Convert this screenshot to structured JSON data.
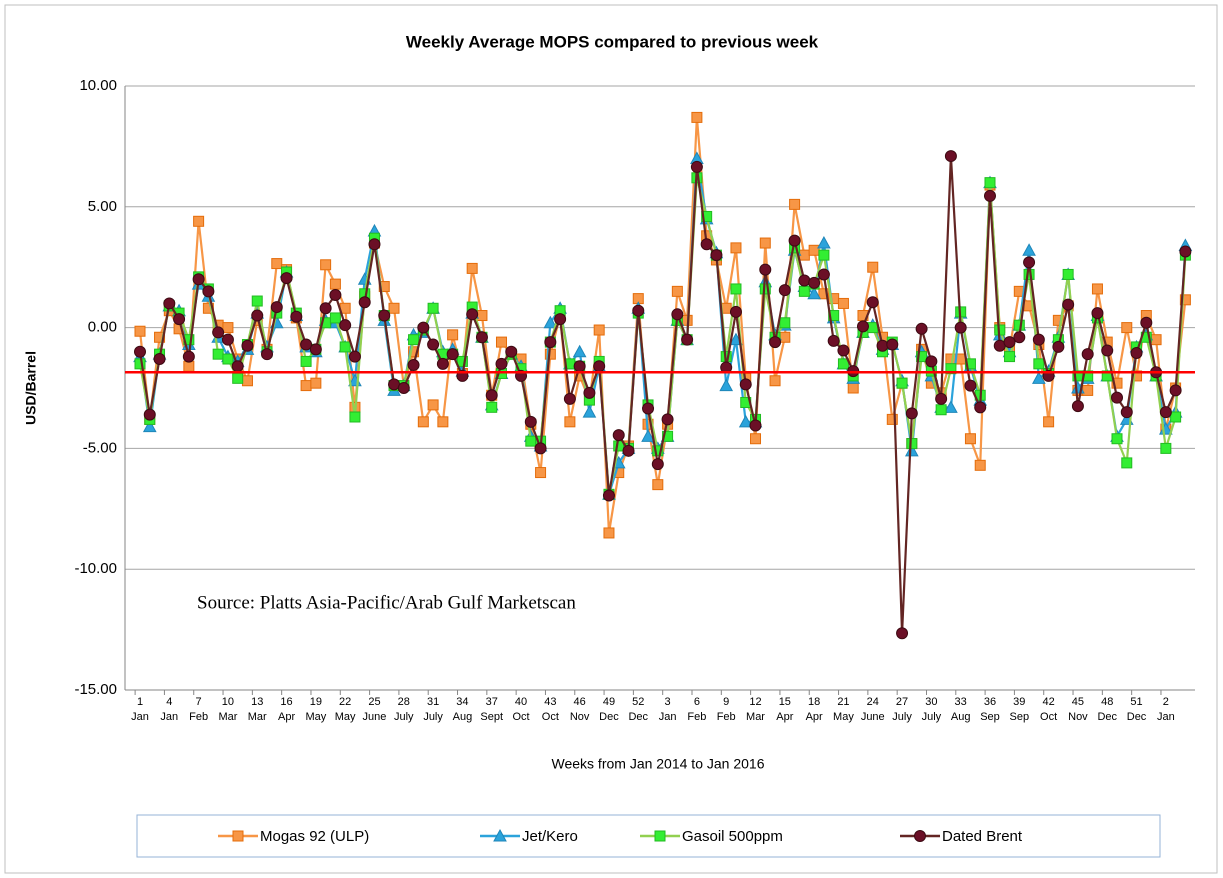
{
  "chart_data": {
    "type": "line",
    "title": "Weekly Average MOPS compared to previous week",
    "x_label": "Weeks from Jan  2014 to Jan 2016",
    "y_label": "USD/Barrel",
    "annotation": "Source: Platts Asia-Pacific/Arab Gulf Marketscan",
    "categories": [
      "1 Jan",
      null,
      null,
      "4 Jan",
      null,
      null,
      "7 Feb",
      null,
      null,
      "10 Mar",
      null,
      null,
      "13 Mar",
      null,
      null,
      "16 Apr",
      null,
      null,
      "19 May",
      null,
      null,
      "22 May",
      null,
      null,
      "25 June",
      null,
      null,
      "28 July",
      null,
      null,
      "31 July",
      null,
      null,
      "34 Aug",
      null,
      null,
      "37 Sept",
      null,
      null,
      "40 Oct",
      null,
      null,
      "43 Oct",
      null,
      null,
      "46 Nov",
      null,
      null,
      "49 Dec",
      null,
      null,
      "52 Dec",
      null,
      null,
      "3 Jan",
      null,
      null,
      "6 Feb",
      null,
      null,
      "9 Feb",
      null,
      null,
      "12 Mar",
      null,
      null,
      "15 Apr",
      null,
      null,
      "18 Apr",
      null,
      null,
      "21 May",
      null,
      null,
      "24 June",
      null,
      null,
      "27 July",
      null,
      null,
      "30 July",
      null,
      null,
      "33 Aug",
      null,
      null,
      "36 Sep",
      null,
      null,
      "39 Sep",
      null,
      null,
      "42 Oct",
      null,
      null,
      "45 Nov",
      null,
      null,
      "48 Dec",
      null,
      null,
      "51 Dec",
      null,
      null,
      "2 Jan",
      null,
      null
    ],
    "series": [
      {
        "name": "Mogas 92 (ULP)",
        "color": "#f79646",
        "marker": "square",
        "values": [
          -0.15,
          -3.8,
          -0.4,
          0.7,
          -0.05,
          -1.6,
          4.4,
          0.8,
          0.1,
          0.0,
          -1.3,
          -2.2,
          0.3,
          -0.9,
          2.65,
          2.4,
          0.4,
          -2.4,
          -2.3,
          2.6,
          1.8,
          0.8,
          -3.3,
          1.3,
          3.5,
          1.7,
          0.8,
          -2.4,
          -1.0,
          -3.9,
          -3.2,
          -3.9,
          -0.3,
          -1.9,
          2.45,
          0.5,
          -2.8,
          -0.6,
          -1.1,
          -1.3,
          -4.0,
          -6.0,
          -1.1,
          0.5,
          -3.9,
          -2.0,
          -3.0,
          -0.1,
          -8.5,
          -6.0,
          -4.9,
          1.2,
          -4.0,
          -6.5,
          -4.0,
          1.5,
          0.3,
          8.7,
          3.8,
          2.8,
          0.8,
          3.3,
          -2.1,
          -4.6,
          3.5,
          -2.2,
          -0.4,
          5.1,
          3.0,
          3.2,
          1.4,
          1.2,
          1.0,
          -2.5,
          0.5,
          2.5,
          -0.4,
          -3.8,
          -2.3,
          -4.8,
          -0.9,
          -2.3,
          -2.7,
          -1.3,
          -1.3,
          -4.6,
          -5.7,
          5.9,
          0.0,
          -0.9,
          1.5,
          0.9,
          -0.7,
          -3.9,
          0.3,
          0.9,
          -2.6,
          -2.6,
          1.6,
          -0.6,
          -2.3,
          0.0,
          -2.0,
          0.5,
          -0.5,
          -4.2,
          -2.5,
          1.15
        ]
      },
      {
        "name": "Jet/Kero",
        "color": "#2ba3db",
        "marker": "triangle",
        "values": [
          -1.2,
          -4.1,
          -1.1,
          0.9,
          0.7,
          -0.7,
          1.8,
          1.3,
          -0.4,
          -1.2,
          -1.4,
          -0.9,
          0.6,
          -0.8,
          0.2,
          2.3,
          0.5,
          -0.8,
          -1.0,
          0.3,
          0.2,
          -0.8,
          -2.2,
          2.0,
          4.0,
          0.3,
          -2.6,
          -2.4,
          -0.3,
          -0.2,
          0.8,
          -1.0,
          -0.9,
          -1.8,
          0.6,
          -0.4,
          -3.2,
          -1.9,
          -1.1,
          -1.6,
          -4.5,
          -4.9,
          0.2,
          0.8,
          -1.5,
          -1.0,
          -3.5,
          -1.6,
          -6.9,
          -5.6,
          -5.0,
          0.8,
          -4.5,
          -5.0,
          -4.5,
          0.3,
          -0.5,
          7.0,
          4.5,
          3.1,
          -2.4,
          -0.5,
          -3.9,
          -3.9,
          1.9,
          -0.3,
          0.1,
          3.2,
          1.7,
          1.4,
          3.5,
          0.4,
          -1.5,
          -2.1,
          -0.2,
          0.1,
          -0.9,
          -0.7,
          -2.2,
          -5.1,
          -1.0,
          -2.0,
          -3.3,
          -3.3,
          0.6,
          -1.6,
          -3.0,
          6.0,
          -0.3,
          -1.0,
          0.1,
          3.2,
          -2.1,
          -1.8,
          -0.4,
          2.2,
          -2.5,
          -2.1,
          0.5,
          -2.0,
          -4.5,
          -3.8,
          -0.8,
          -0.3,
          -2.0,
          -4.2,
          -3.5,
          3.4
        ]
      },
      {
        "name": "Gasoil 500ppm",
        "color": "#92d050",
        "marker": "square",
        "values": [
          -1.5,
          -3.8,
          -1.1,
          0.9,
          0.6,
          -0.5,
          2.1,
          1.6,
          -1.1,
          -1.3,
          -2.1,
          -0.7,
          1.1,
          -1.0,
          0.6,
          2.3,
          0.6,
          -1.4,
          -0.9,
          0.2,
          0.4,
          -0.8,
          -3.7,
          1.4,
          3.7,
          0.5,
          -2.4,
          -2.4,
          -0.5,
          -0.1,
          0.8,
          -1.1,
          -1.1,
          -1.4,
          0.85,
          -0.4,
          -3.3,
          -1.9,
          -1.1,
          -1.7,
          -4.7,
          -4.7,
          -0.6,
          0.7,
          -1.5,
          -1.6,
          -3.0,
          -1.4,
          -6.9,
          -4.9,
          -5.0,
          0.6,
          -3.2,
          -5.1,
          -4.5,
          0.3,
          -0.5,
          6.2,
          4.6,
          3.0,
          -1.2,
          1.6,
          -3.1,
          -3.8,
          1.6,
          -0.4,
          0.2,
          3.3,
          1.5,
          1.8,
          3.0,
          0.5,
          -1.5,
          -2.0,
          -0.2,
          0.0,
          -1.0,
          -0.6,
          -2.3,
          -4.8,
          -1.2,
          -1.8,
          -3.4,
          -1.7,
          0.65,
          -1.5,
          -2.8,
          6.0,
          -0.1,
          -1.2,
          0.1,
          2.2,
          -1.5,
          -1.9,
          -0.5,
          2.2,
          -2.0,
          -2.0,
          0.4,
          -2.0,
          -4.6,
          -5.6,
          -0.8,
          -0.4,
          -2.0,
          -5.0,
          -3.7,
          3.0
        ]
      },
      {
        "name": "Dated Brent",
        "color": "#632523",
        "marker": "circle",
        "values": [
          -1.0,
          -3.6,
          -1.3,
          1.0,
          0.35,
          -1.2,
          2.0,
          1.5,
          -0.2,
          -0.5,
          -1.6,
          -0.75,
          0.5,
          -1.1,
          0.85,
          2.05,
          0.45,
          -0.7,
          -0.9,
          0.8,
          1.35,
          0.1,
          -1.2,
          1.05,
          3.45,
          0.5,
          -2.35,
          -2.5,
          -1.55,
          0.0,
          -0.7,
          -1.5,
          -1.1,
          -2.0,
          0.55,
          -0.4,
          -2.8,
          -1.5,
          -1.0,
          -2.0,
          -3.9,
          -5.0,
          -0.6,
          0.35,
          -2.95,
          -1.6,
          -2.7,
          -1.6,
          -6.95,
          -4.45,
          -5.1,
          0.7,
          -3.35,
          -5.65,
          -3.8,
          0.55,
          -0.5,
          6.65,
          3.45,
          3.0,
          -1.65,
          0.65,
          -2.35,
          -4.05,
          2.4,
          -0.6,
          1.55,
          3.6,
          1.95,
          1.85,
          2.2,
          -0.55,
          -0.95,
          -1.8,
          0.05,
          1.05,
          -0.75,
          -0.7,
          -12.65,
          -3.55,
          -0.05,
          -1.4,
          -2.95,
          7.1,
          0.0,
          -2.4,
          -3.3,
          5.45,
          -0.75,
          -0.6,
          -0.4,
          2.7,
          -0.5,
          -2.0,
          -0.8,
          0.95,
          -3.25,
          -1.1,
          0.6,
          -0.95,
          -2.9,
          -3.5,
          -1.05,
          0.2,
          -1.85,
          -3.5,
          -2.6,
          3.15
        ]
      }
    ],
    "reference_line": {
      "value": -1.85,
      "color": "#ff0000"
    },
    "ylim": [
      -15,
      10
    ],
    "yticks": [
      {
        "value": -15,
        "label": "-15.00"
      },
      {
        "value": -10,
        "label": "-10.00"
      },
      {
        "value": -5,
        "label": "-5.00"
      },
      {
        "value": 0,
        "label": "0.00"
      },
      {
        "value": 5,
        "label": "5.00"
      },
      {
        "value": 10,
        "label": "10.00"
      }
    ],
    "grid": true,
    "legend": "bottom"
  }
}
